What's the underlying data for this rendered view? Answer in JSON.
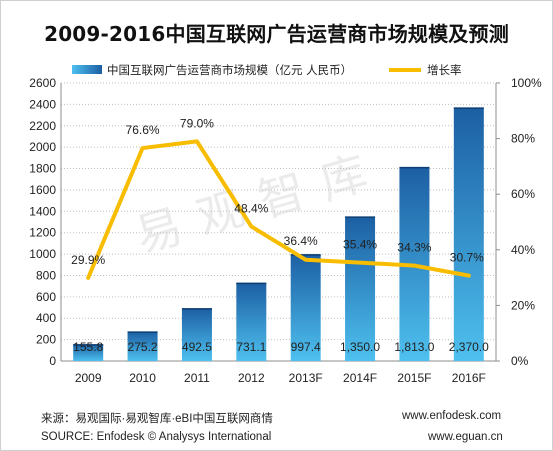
{
  "title": "2009-2016中国互联网广告运营商市场规模及预测",
  "watermark": "易观智库",
  "legend": {
    "bar_label": "中国互联网广告运营商市场规模（亿元 人民币）",
    "line_label": "增长率"
  },
  "footer": {
    "source_cn": "来源：易观国际·易观智库·eBI中国互联网商情",
    "source_en": "SOURCE: Enfodesk © Analysys International",
    "site1": "www.enfodesk.com",
    "site2": "www.eguan.cn"
  },
  "colors": {
    "bar_top": "#1c5fa3",
    "bar_bottom": "#4ec0ef",
    "line": "#f8bd00",
    "grid": "#bfbfbf"
  },
  "chart_data": {
    "type": "bar",
    "categories": [
      "2009",
      "2010",
      "2011",
      "2012",
      "2013F",
      "2014F",
      "2015F",
      "2016F"
    ],
    "series": [
      {
        "name": "中国互联网广告运营商市场规模（亿元 人民币）",
        "type": "bar",
        "axis": "left",
        "values": [
          155.8,
          275.2,
          492.5,
          731.1,
          997.4,
          1350.0,
          1813.0,
          2370.0
        ],
        "labels": [
          "155.8",
          "275.2",
          "492.5",
          "731.1",
          "997.4",
          "1,350.0",
          "1,813.0",
          "2,370.0"
        ]
      },
      {
        "name": "增长率",
        "type": "line",
        "axis": "right",
        "values": [
          29.9,
          76.6,
          79.0,
          48.4,
          36.4,
          35.4,
          34.3,
          30.7
        ],
        "labels": [
          "29.9%",
          "76.6%",
          "79.0%",
          "48.4%",
          "36.4%",
          "35.4%",
          "34.3%",
          "30.7%"
        ]
      }
    ],
    "y_left": {
      "min": 0,
      "max": 2600,
      "step": 200,
      "ticks": [
        "0",
        "200",
        "400",
        "600",
        "800",
        "1000",
        "1200",
        "1400",
        "1600",
        "1800",
        "2000",
        "2200",
        "2400",
        "2600"
      ]
    },
    "y_right": {
      "min": 0,
      "max": 100,
      "step": 20,
      "ticks": [
        "0%",
        "20%",
        "40%",
        "60%",
        "80%",
        "100%"
      ]
    },
    "grid": true,
    "legend_position": "top"
  }
}
